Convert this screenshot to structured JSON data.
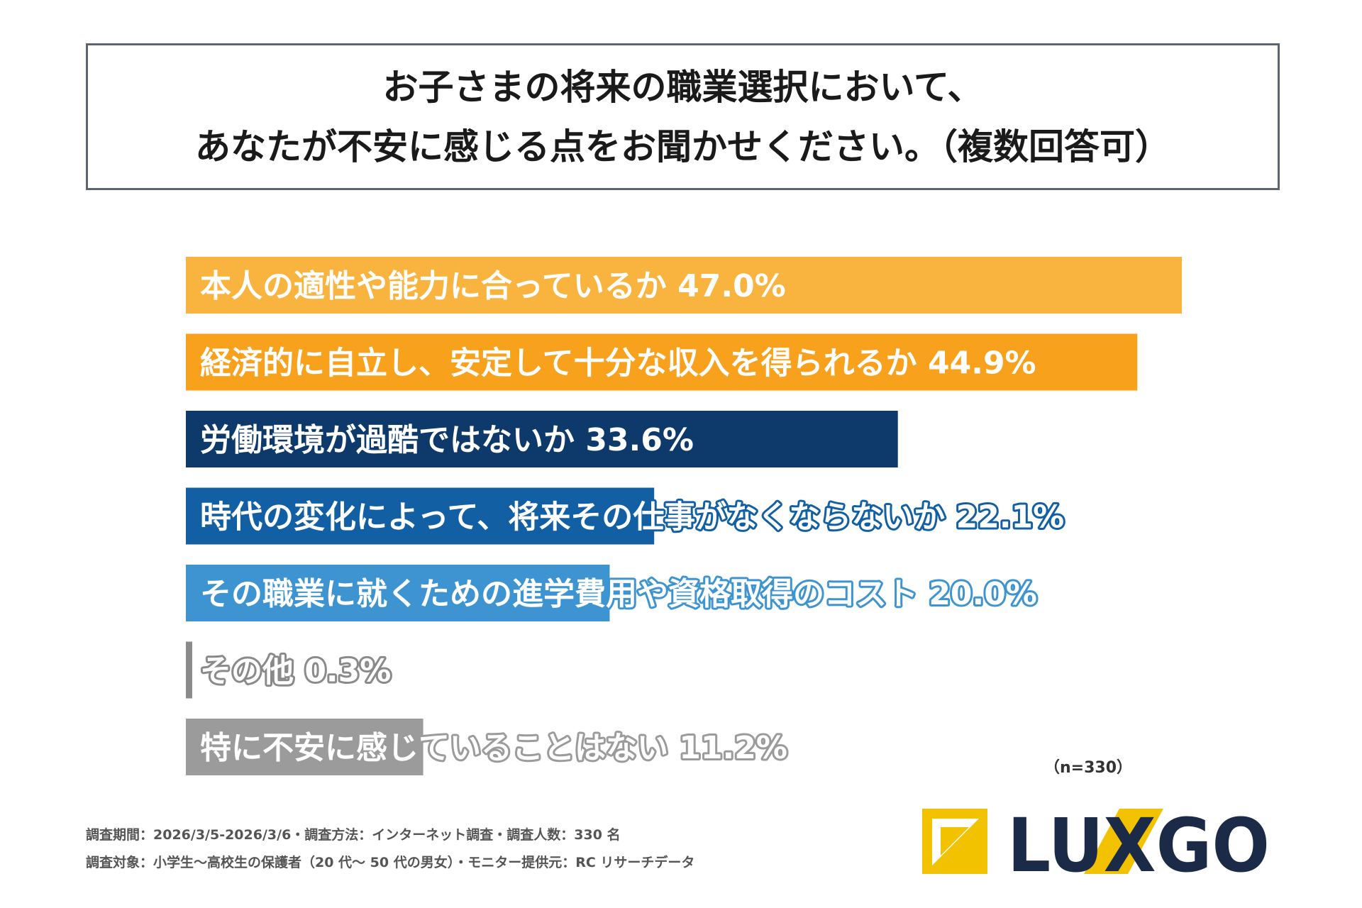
{
  "title": {
    "line1": "お子さまの将来の職業選択において、",
    "line2": "あなたが不安に感じる点をお聞かせください。（複数回答可）"
  },
  "chart_data": {
    "type": "bar",
    "orientation": "horizontal",
    "categories": [
      "本人の適性や能力に合っているか",
      "経済的に自立し、安定して十分な収入を得られるか",
      "労働環境が過酷ではないか",
      "時代の変化によって、将来その仕事がなくならないか",
      "その職業に就くための進学費用や資格取得のコスト",
      "その他",
      "特に不安に感じていることはない"
    ],
    "values": [
      47.0,
      44.9,
      33.6,
      22.1,
      20.0,
      0.3,
      11.2
    ],
    "value_labels": [
      "47.0%",
      "44.9%",
      "33.6%",
      "22.1%",
      "20.0%",
      "0.3%",
      "11.2%"
    ],
    "unit": "%",
    "colors": [
      "#F9B43F",
      "#F7A11C",
      "#0E3A6B",
      "#135FA4",
      "#3D94D0",
      "#8A8A8A",
      "#9B9B9B"
    ],
    "xlim": [
      0,
      100
    ],
    "grid": false,
    "legend": "none"
  },
  "note": "（n=330）",
  "footer": {
    "line1": "調査期間：2026/3/5-2026/3/6・調査方法：インターネット調査・調査人数：330 名",
    "line2": "調査対象：小学生〜高校生の保護者（20 代〜 50 代の男女）・モニター提供元：RC リサーチデータ"
  },
  "logo": {
    "text": "LUXGO",
    "accent_color": "#F2C200",
    "text_color": "#1A2A47"
  }
}
